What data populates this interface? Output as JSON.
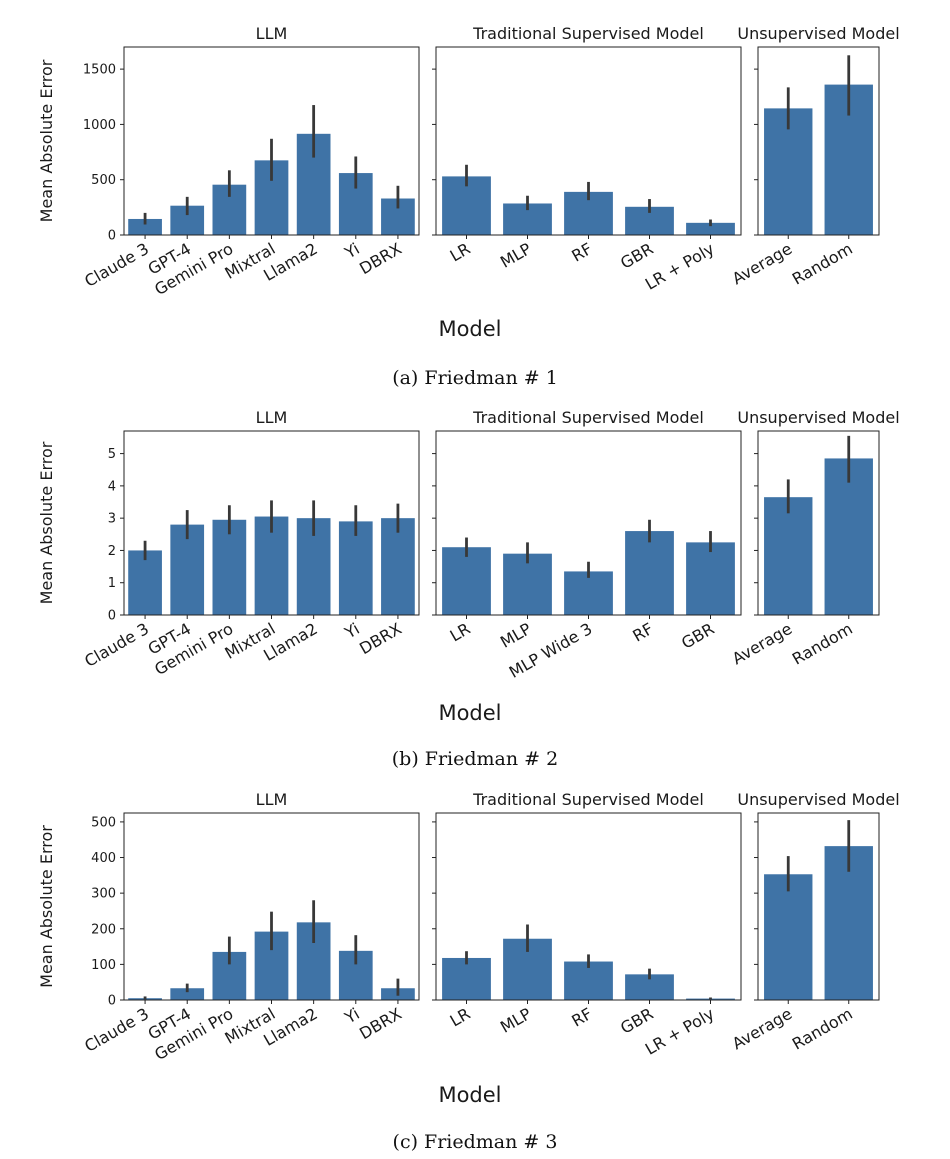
{
  "figure": {
    "xlabel": "Model",
    "ylabel": "Mean Absolute Error",
    "bar_color": "#3f73a6",
    "error_color": "#383838"
  },
  "chart_data": [
    {
      "caption": "(a) Friedman # 1",
      "type": "bar",
      "xlabel": "Model",
      "ylabel": "Mean Absolute Error",
      "ylim": [
        0,
        1700
      ],
      "yticks": [
        0,
        500,
        1000,
        1500
      ],
      "panels": [
        {
          "title": "LLM",
          "categories": [
            "Claude 3",
            "GPT-4",
            "Gemini Pro",
            "Mixtral",
            "Llama2",
            "Yi",
            "DBRX"
          ],
          "values": [
            145,
            265,
            455,
            675,
            915,
            560,
            330
          ],
          "error_low": [
            95,
            180,
            345,
            490,
            700,
            420,
            240
          ],
          "error_high": [
            200,
            345,
            585,
            870,
            1175,
            710,
            445
          ]
        },
        {
          "title": "Traditional Supervised Model",
          "categories": [
            "LR",
            "MLP",
            "RF",
            "GBR",
            "LR + Poly"
          ],
          "values": [
            530,
            285,
            390,
            255,
            110
          ],
          "error_low": [
            440,
            225,
            315,
            200,
            80
          ],
          "error_high": [
            635,
            355,
            480,
            325,
            140
          ]
        },
        {
          "title": "Unsupervised Model",
          "categories": [
            "Average",
            "Random"
          ],
          "values": [
            1145,
            1360
          ],
          "error_low": [
            955,
            1080
          ],
          "error_high": [
            1335,
            1625
          ]
        }
      ]
    },
    {
      "caption": "(b) Friedman # 2",
      "type": "bar",
      "xlabel": "Model",
      "ylabel": "Mean Absolute Error",
      "ylim": [
        0,
        5.7
      ],
      "yticks": [
        0,
        1,
        2,
        3,
        4,
        5
      ],
      "panels": [
        {
          "title": "LLM",
          "categories": [
            "Claude 3",
            "GPT-4",
            "Gemini Pro",
            "Mixtral",
            "Llama2",
            "Yi",
            "DBRX"
          ],
          "values": [
            2.0,
            2.8,
            2.95,
            3.05,
            3.0,
            2.9,
            3.0
          ],
          "error_low": [
            1.7,
            2.35,
            2.5,
            2.55,
            2.45,
            2.45,
            2.55
          ],
          "error_high": [
            2.3,
            3.25,
            3.4,
            3.55,
            3.55,
            3.4,
            3.45
          ]
        },
        {
          "title": "Traditional Supervised Model",
          "categories": [
            "LR",
            "MLP",
            "MLP Wide 3",
            "RF",
            "GBR"
          ],
          "values": [
            2.1,
            1.9,
            1.35,
            2.6,
            2.25
          ],
          "error_low": [
            1.8,
            1.6,
            1.15,
            2.25,
            1.95
          ],
          "error_high": [
            2.4,
            2.25,
            1.65,
            2.95,
            2.6
          ]
        },
        {
          "title": "Unsupervised Model",
          "categories": [
            "Average",
            "Random"
          ],
          "values": [
            3.65,
            4.85
          ],
          "error_low": [
            3.15,
            4.1
          ],
          "error_high": [
            4.2,
            5.55
          ]
        }
      ]
    },
    {
      "caption": "(c) Friedman # 3",
      "type": "bar",
      "xlabel": "Model",
      "ylabel": "Mean Absolute Error",
      "ylim": [
        0,
        525
      ],
      "yticks": [
        0,
        100,
        200,
        300,
        400,
        500
      ],
      "panels": [
        {
          "title": "LLM",
          "categories": [
            "Claude 3",
            "GPT-4",
            "Gemini Pro",
            "Mixtral",
            "Llama2",
            "Yi",
            "DBRX"
          ],
          "values": [
            5,
            33,
            135,
            192,
            218,
            138,
            33
          ],
          "error_low": [
            2,
            22,
            100,
            140,
            160,
            100,
            12
          ],
          "error_high": [
            10,
            46,
            178,
            248,
            280,
            182,
            60
          ]
        },
        {
          "title": "Traditional Supervised Model",
          "categories": [
            "LR",
            "MLP",
            "RF",
            "GBR",
            "LR + Poly"
          ],
          "values": [
            118,
            172,
            108,
            72,
            4
          ],
          "error_low": [
            100,
            135,
            90,
            58,
            2
          ],
          "error_high": [
            137,
            212,
            128,
            88,
            7
          ]
        },
        {
          "title": "Unsupervised Model",
          "categories": [
            "Average",
            "Random"
          ],
          "values": [
            353,
            432
          ],
          "error_low": [
            305,
            360
          ],
          "error_high": [
            404,
            505
          ]
        }
      ]
    }
  ]
}
